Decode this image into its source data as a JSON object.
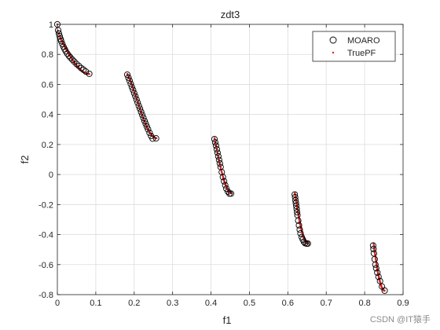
{
  "watermark": "CSDN @IT猿手",
  "colors": {
    "axes": "#262626",
    "grid": "#dcdcdc",
    "marker_edge": "#000000",
    "true_pf": "#d62728",
    "background": "#ffffff"
  },
  "chart_data": {
    "type": "scatter",
    "title": "zdt3",
    "xlabel": "f1",
    "ylabel": "f2",
    "xlim": [
      0,
      0.9
    ],
    "ylim": [
      -0.8,
      1.0
    ],
    "xticks": [
      0,
      0.1,
      0.2,
      0.3,
      0.4,
      0.5,
      0.6,
      0.7,
      0.8,
      0.9
    ],
    "xtick_labels": [
      "0",
      "0.1",
      "0.2",
      "0.3",
      "0.4",
      "0.5",
      "0.6",
      "0.7",
      "0.8",
      "0.9"
    ],
    "yticks": [
      -0.8,
      -0.6,
      -0.4,
      -0.2,
      0,
      0.2,
      0.4,
      0.6,
      0.8,
      1
    ],
    "ytick_labels": [
      "-0.8",
      "-0.6",
      "-0.4",
      "-0.2",
      "0",
      "0.2",
      "0.4",
      "0.6",
      "0.8",
      "1"
    ],
    "grid": true,
    "legend_position": "top-right",
    "series": [
      {
        "name": "MOARO",
        "marker": "open-circle",
        "x": [
          0.0,
          0.002,
          0.004,
          0.006,
          0.008,
          0.01,
          0.013,
          0.016,
          0.019,
          0.022,
          0.026,
          0.03,
          0.034,
          0.039,
          0.044,
          0.05,
          0.056,
          0.062,
          0.068,
          0.074,
          0.083,
          0.182,
          0.185,
          0.188,
          0.191,
          0.194,
          0.197,
          0.2,
          0.203,
          0.206,
          0.209,
          0.212,
          0.215,
          0.218,
          0.221,
          0.224,
          0.227,
          0.23,
          0.233,
          0.236,
          0.24,
          0.244,
          0.248,
          0.257,
          0.409,
          0.411,
          0.413,
          0.415,
          0.417,
          0.419,
          0.421,
          0.423,
          0.425,
          0.428,
          0.431,
          0.434,
          0.437,
          0.44,
          0.444,
          0.448,
          0.452,
          0.618,
          0.619,
          0.62,
          0.621,
          0.622,
          0.623,
          0.624,
          0.625,
          0.627,
          0.629,
          0.631,
          0.633,
          0.636,
          0.639,
          0.642,
          0.645,
          0.649,
          0.652,
          0.822,
          0.823,
          0.824,
          0.826,
          0.828,
          0.83,
          0.833,
          0.836,
          0.84,
          0.845,
          0.852
        ],
        "y": [
          1.0,
          0.961,
          0.939,
          0.921,
          0.904,
          0.889,
          0.869,
          0.851,
          0.835,
          0.821,
          0.805,
          0.791,
          0.779,
          0.765,
          0.752,
          0.736,
          0.723,
          0.709,
          0.698,
          0.686,
          0.671,
          0.665,
          0.645,
          0.625,
          0.604,
          0.583,
          0.563,
          0.542,
          0.521,
          0.5,
          0.479,
          0.458,
          0.438,
          0.417,
          0.397,
          0.377,
          0.357,
          0.338,
          0.319,
          0.301,
          0.278,
          0.257,
          0.239,
          0.241,
          0.236,
          0.214,
          0.192,
          0.168,
          0.145,
          0.121,
          0.097,
          0.074,
          0.05,
          0.016,
          -0.017,
          -0.045,
          -0.071,
          -0.094,
          -0.114,
          -0.127,
          -0.127,
          -0.133,
          -0.151,
          -0.172,
          -0.19,
          -0.209,
          -0.229,
          -0.251,
          -0.27,
          -0.307,
          -0.338,
          -0.367,
          -0.392,
          -0.416,
          -0.433,
          -0.448,
          -0.457,
          -0.46,
          -0.46,
          -0.473,
          -0.496,
          -0.525,
          -0.564,
          -0.6,
          -0.624,
          -0.653,
          -0.681,
          -0.71,
          -0.746,
          -0.773
        ]
      },
      {
        "name": "TruePF",
        "marker": "dot",
        "segments": [
          [
            0.0,
            0.0830015349
          ],
          [
            0.182228728,
            0.2577623634
          ],
          [
            0.4093136748,
            0.4538821041
          ],
          [
            0.6183967944,
            0.6525117038
          ],
          [
            0.8233317983,
            0.8518328654
          ]
        ]
      }
    ]
  }
}
